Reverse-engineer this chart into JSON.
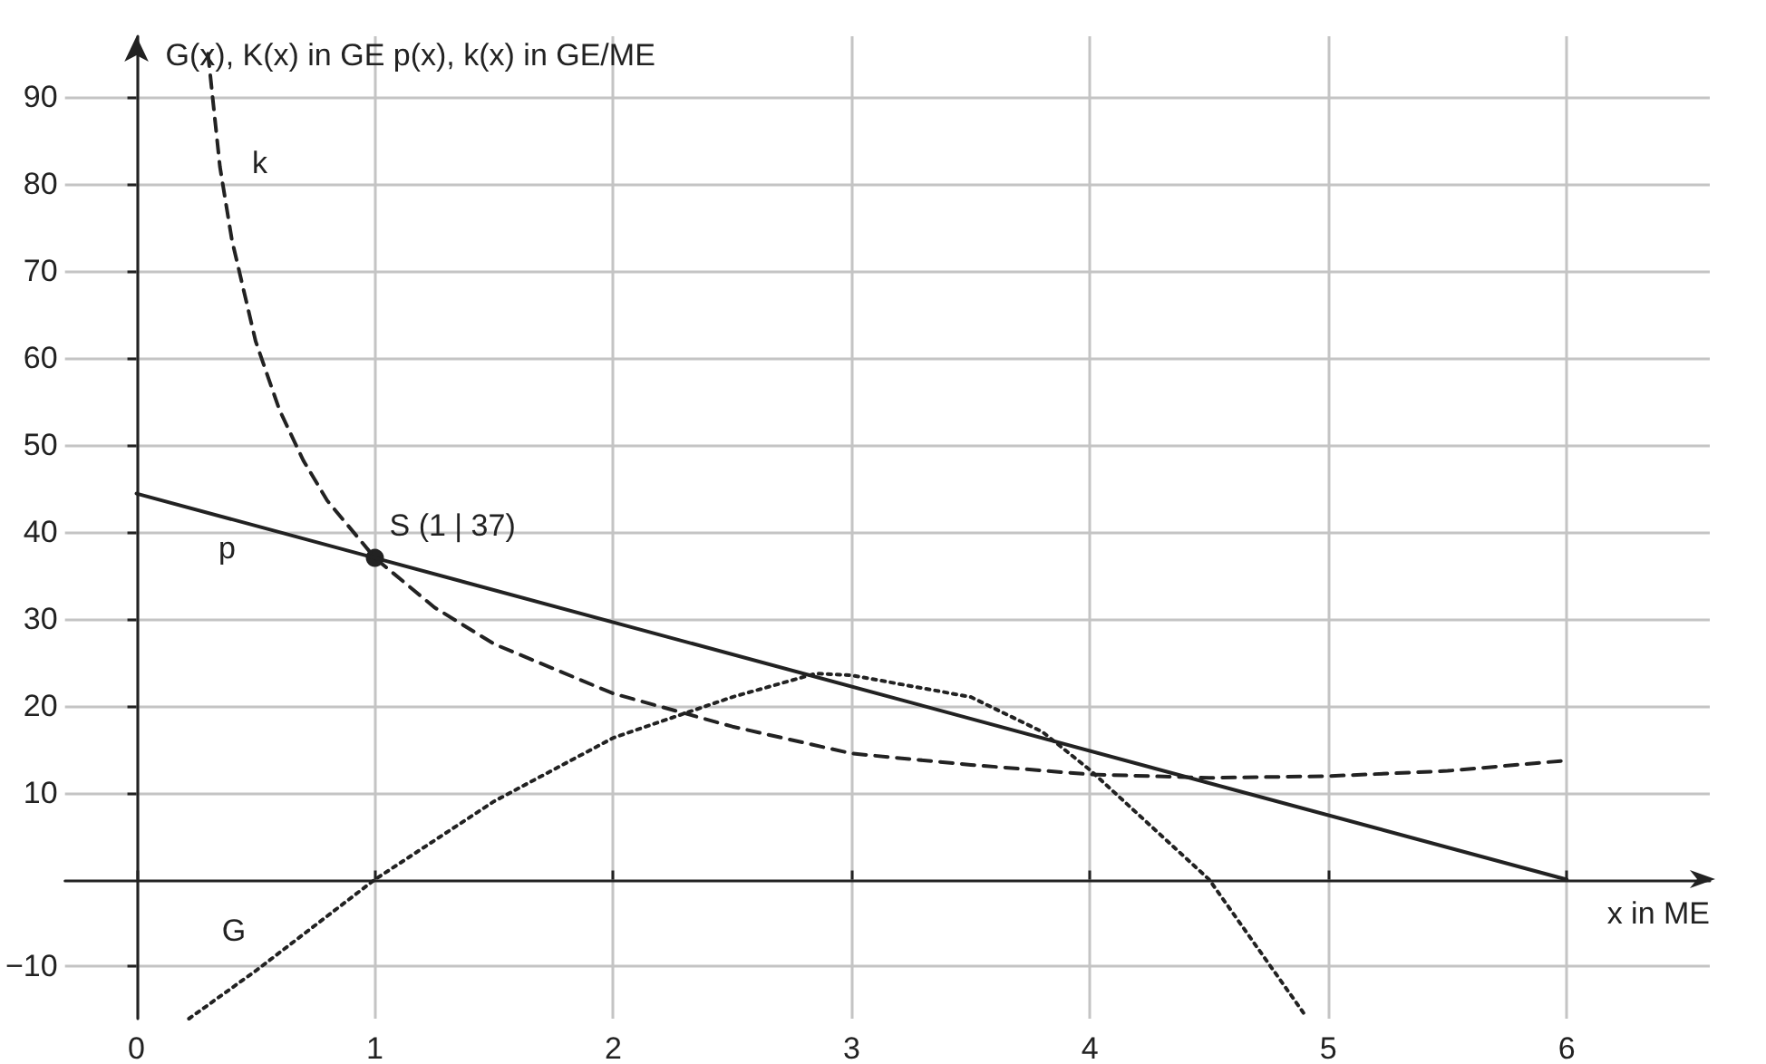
{
  "chart_data": {
    "type": "line",
    "xlabel": "x in ME",
    "ylabel": "G(x), K(x) in GE p(x), k(x) in GE/ME",
    "xlim": [
      -0.3,
      6.6
    ],
    "ylim": [
      -16,
      97
    ],
    "xticks": [
      0,
      1,
      2,
      3,
      4,
      5,
      6
    ],
    "yticks": [
      {
        "value": -10,
        "label": "−10"
      },
      10,
      20,
      30,
      40,
      50,
      60,
      70,
      80,
      90
    ],
    "grid": true,
    "legend": false,
    "marker": "none",
    "series": [
      {
        "name": "G",
        "color": "#222222",
        "line_style": "dotted",
        "x": [
          0.22,
          0.5,
          1,
          1.5,
          2,
          2.5,
          2.85,
          3,
          3.5,
          3.8,
          4,
          4.5,
          4.9
        ],
        "values": [
          -16,
          -10.5,
          0,
          9,
          16.3,
          21,
          23.7,
          23.5,
          21,
          17,
          12.6,
          0,
          -15.5
        ]
      },
      {
        "name": "k",
        "color": "#222222",
        "line_style": "dashed",
        "x": [
          0.3,
          0.35,
          0.4,
          0.5,
          0.6,
          0.7,
          0.8,
          1,
          1.25,
          1.5,
          2,
          2.5,
          3,
          3.5,
          4,
          4.5,
          5,
          5.5,
          6
        ],
        "values": [
          95,
          82,
          73.6,
          61.9,
          54,
          48.2,
          43.6,
          37,
          31.3,
          27.1,
          21.4,
          17.6,
          14.5,
          13.2,
          12.1,
          11.7,
          11.9,
          12.5,
          13.7
        ]
      },
      {
        "name": "p",
        "color": "#222222",
        "line_style": "solid",
        "x": [
          0,
          1,
          6
        ],
        "values": [
          44.4,
          37,
          0
        ]
      }
    ],
    "annotations": [
      {
        "text": "S (1 | 37)",
        "x": 1,
        "y": 37
      }
    ]
  }
}
